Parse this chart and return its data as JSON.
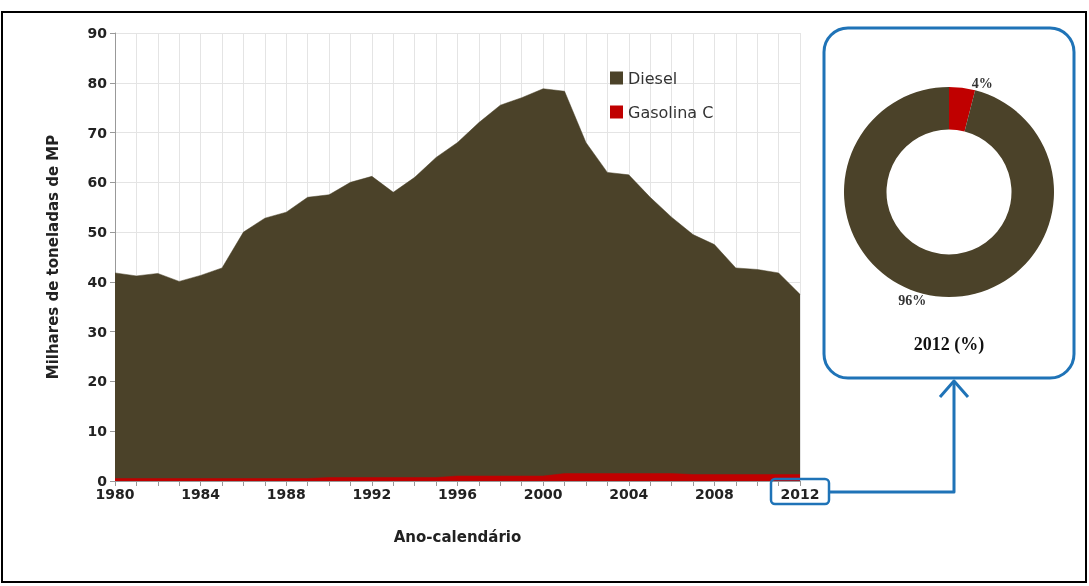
{
  "chart_data": [
    {
      "type": "area",
      "stacked": true,
      "xlabel": "Ano-calendário",
      "ylabel": "Milhares de toneladas de MP",
      "x": [
        1980,
        1981,
        1982,
        1983,
        1984,
        1985,
        1986,
        1987,
        1988,
        1989,
        1990,
        1991,
        1992,
        1993,
        1994,
        1995,
        1996,
        1997,
        1998,
        1999,
        2000,
        2001,
        2002,
        2003,
        2004,
        2005,
        2006,
        2007,
        2008,
        2009,
        2010,
        2011,
        2012
      ],
      "series": [
        {
          "name": "Gasolina C",
          "color": "#c00000",
          "values": [
            0.5,
            0.5,
            0.5,
            0.5,
            0.5,
            0.5,
            0.5,
            0.5,
            0.5,
            0.5,
            0.7,
            0.7,
            0.7,
            0.7,
            0.7,
            0.7,
            1.0,
            1.0,
            1.0,
            1.0,
            1.0,
            1.5,
            1.5,
            1.5,
            1.5,
            1.5,
            1.5,
            1.3,
            1.3,
            1.3,
            1.3,
            1.3,
            1.3
          ]
        },
        {
          "name": "Diesel",
          "color": "#4b4229",
          "values": [
            41.3,
            40.7,
            41.2,
            39.6,
            40.8,
            42.3,
            49.5,
            52.3,
            53.5,
            56.5,
            56.8,
            59.3,
            60.5,
            57.3,
            60.3,
            64.3,
            67,
            71,
            74.5,
            76,
            77.8,
            76.8,
            66.5,
            60.5,
            60,
            55.5,
            51.5,
            48.2,
            46.2,
            41.5,
            41.2,
            40.5,
            36.2
          ]
        }
      ],
      "xlim": [
        1980,
        2012
      ],
      "xticks": [
        1980,
        {
          "value": 1981,
          "label": null
        },
        {
          "value": 1982,
          "label": null
        },
        {
          "value": 1983,
          "label": null
        },
        1984,
        {
          "value": 1985,
          "label": null
        },
        {
          "value": 1986,
          "label": null
        },
        {
          "value": 1987,
          "label": null
        },
        1988,
        {
          "value": 1989,
          "label": null
        },
        {
          "value": 1990,
          "label": null
        },
        {
          "value": 1991,
          "label": null
        },
        1992,
        {
          "value": 1993,
          "label": null
        },
        {
          "value": 1994,
          "label": null
        },
        {
          "value": 1995,
          "label": null
        },
        1996,
        {
          "value": 1997,
          "label": null
        },
        {
          "value": 1998,
          "label": null
        },
        {
          "value": 1999,
          "label": null
        },
        2000,
        {
          "value": 2001,
          "label": null
        },
        {
          "value": 2002,
          "label": null
        },
        {
          "value": 2003,
          "label": null
        },
        2004,
        {
          "value": 2005,
          "label": null
        },
        {
          "value": 2006,
          "label": null
        },
        {
          "value": 2007,
          "label": null
        },
        2008,
        {
          "value": 2009,
          "label": null
        },
        {
          "value": 2010,
          "label": null
        },
        {
          "value": 2011,
          "label": null
        },
        2012
      ],
      "ylim": [
        0,
        90
      ],
      "yticks": [
        0,
        10,
        20,
        30,
        40,
        50,
        60,
        70,
        80,
        90
      ],
      "grid": true,
      "legend": "top right"
    },
    {
      "type": "donut",
      "title": "2012 (%)",
      "categories": [
        null,
        null
      ],
      "values": [
        4,
        96
      ],
      "colors": [
        "#c00000",
        "#4b4229"
      ],
      "value_labels": [
        "4%",
        "96%"
      ]
    }
  ]
}
